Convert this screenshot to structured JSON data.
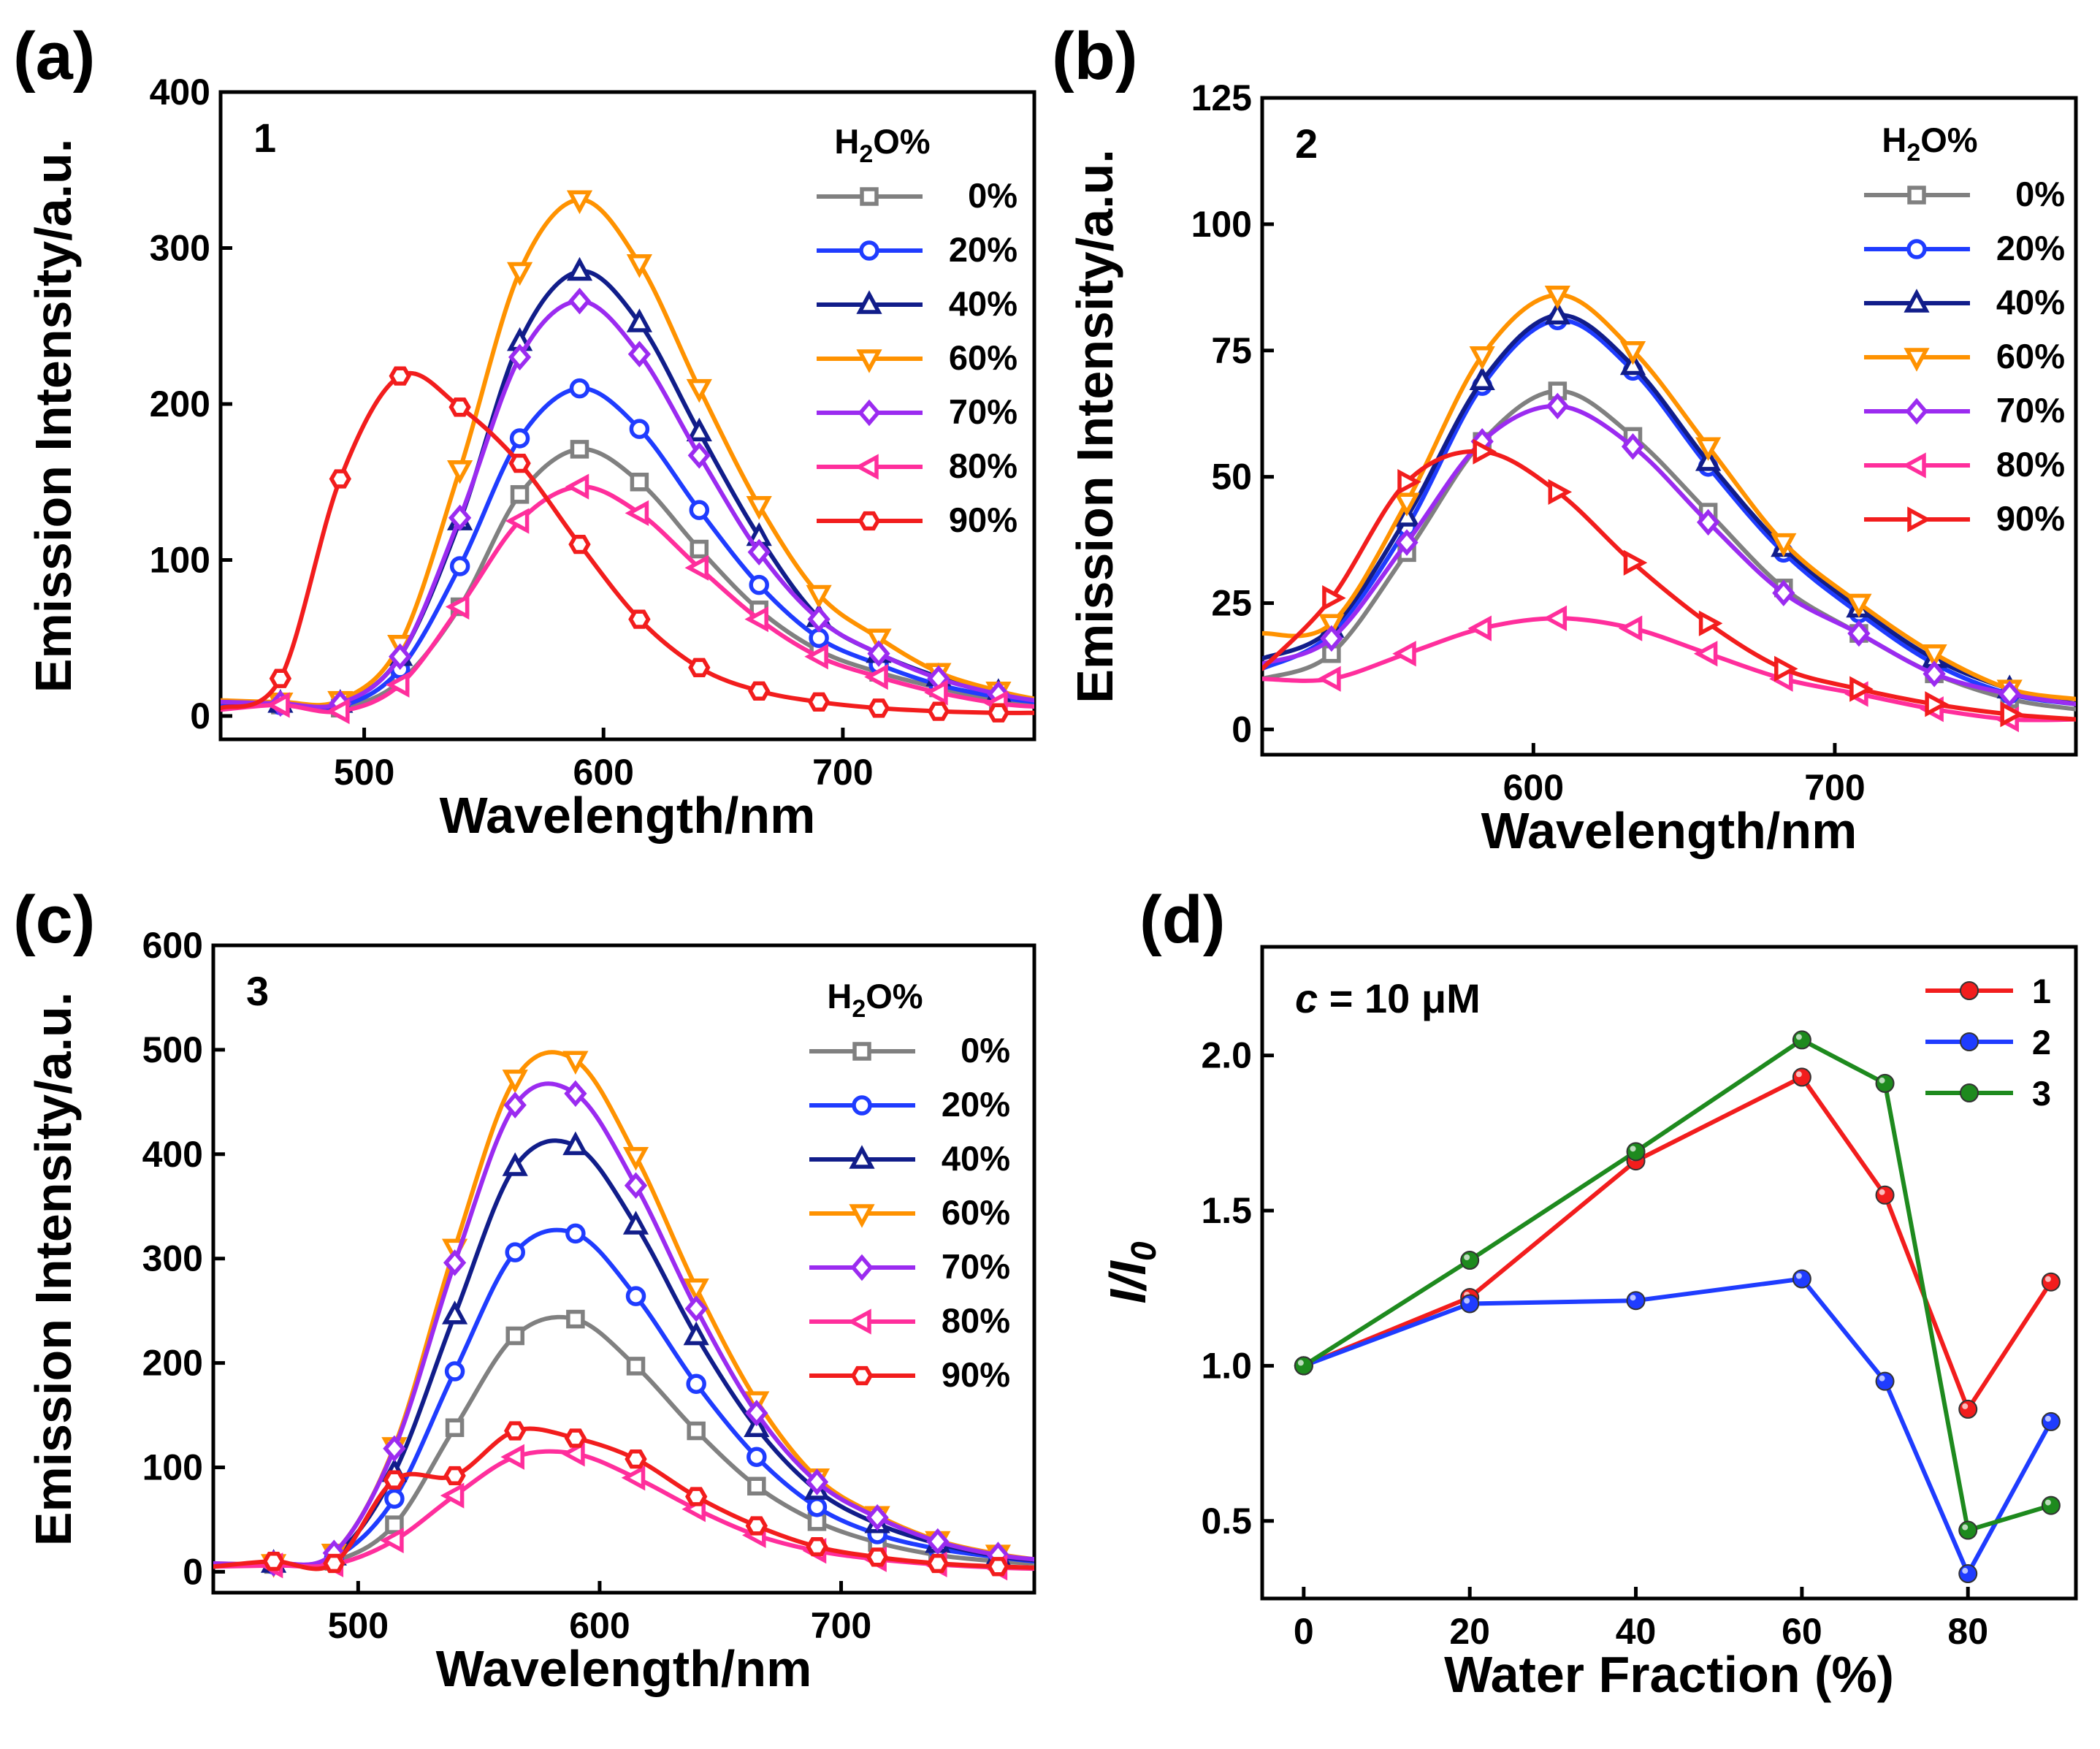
{
  "figure": {
    "panels": [
      "(a)",
      "(b)",
      "(c)",
      "(d)"
    ]
  },
  "series_colors": {
    "0%": "#808080",
    "20%": "#1f3cff",
    "40%": "#111d8a",
    "60%": "#ff9200",
    "70%": "#9b2bf0",
    "80%": "#ff2e9c",
    "90%": "#f21d1d"
  },
  "chart_data": [
    {
      "panel": "(a)",
      "type": "line",
      "compound_label": "1",
      "legend_title": "H2O%",
      "xlabel": "Wavelength/nm",
      "ylabel": "Emission Intensity/a.u.",
      "xlim": [
        440,
        780
      ],
      "ylim": [
        -15,
        400
      ],
      "xticks": [
        500,
        600,
        700
      ],
      "yticks": [
        0,
        100,
        200,
        300,
        400
      ],
      "series": [
        {
          "name": "0%",
          "marker": "square",
          "x": [
            440,
            465,
            490,
            515,
            540,
            565,
            590,
            615,
            640,
            665,
            690,
            715,
            740,
            765,
            780
          ],
          "values": [
            8,
            7,
            5,
            22,
            70,
            142,
            171,
            150,
            107,
            68,
            42,
            28,
            18,
            10,
            8
          ]
        },
        {
          "name": "20%",
          "marker": "circle",
          "x": [
            440,
            465,
            490,
            515,
            540,
            565,
            590,
            615,
            640,
            665,
            690,
            715,
            740,
            765,
            780
          ],
          "values": [
            8,
            7,
            6,
            30,
            96,
            178,
            210,
            184,
            132,
            84,
            50,
            33,
            20,
            12,
            9
          ]
        },
        {
          "name": "40%",
          "marker": "triangle-up",
          "x": [
            440,
            465,
            490,
            515,
            540,
            565,
            590,
            615,
            640,
            665,
            690,
            715,
            740,
            765,
            780
          ],
          "values": [
            9,
            8,
            8,
            38,
            125,
            240,
            285,
            252,
            182,
            115,
            63,
            40,
            25,
            15,
            10
          ]
        },
        {
          "name": "60%",
          "marker": "triangle-down",
          "x": [
            440,
            465,
            490,
            515,
            540,
            565,
            590,
            615,
            640,
            665,
            690,
            715,
            740,
            765,
            780
          ],
          "values": [
            10,
            9,
            10,
            46,
            158,
            285,
            331,
            290,
            210,
            135,
            78,
            50,
            28,
            16,
            11
          ]
        },
        {
          "name": "70%",
          "marker": "diamond",
          "x": [
            440,
            465,
            490,
            515,
            540,
            565,
            590,
            615,
            640,
            665,
            690,
            715,
            740,
            765,
            780
          ],
          "values": [
            9,
            8,
            8,
            38,
            127,
            230,
            266,
            232,
            167,
            105,
            62,
            40,
            24,
            14,
            10
          ]
        },
        {
          "name": "80%",
          "marker": "triangle-left",
          "x": [
            440,
            465,
            490,
            515,
            540,
            565,
            590,
            615,
            640,
            665,
            690,
            715,
            740,
            765,
            780
          ],
          "values": [
            4,
            7,
            3,
            20,
            70,
            125,
            147,
            130,
            95,
            62,
            38,
            25,
            15,
            8,
            6
          ]
        },
        {
          "name": "90%",
          "marker": "hexagon",
          "x": [
            440,
            465,
            490,
            515,
            540,
            565,
            590,
            615,
            640,
            665,
            690,
            715,
            740,
            765,
            780
          ],
          "values": [
            5,
            24,
            152,
            218,
            198,
            162,
            110,
            62,
            31,
            16,
            9,
            5,
            3,
            2,
            2
          ]
        }
      ]
    },
    {
      "panel": "(b)",
      "type": "line",
      "compound_label": "2",
      "legend_title": "H2O%",
      "xlabel": "Wavelength/nm",
      "ylabel": "Emission Intensity/a.u.",
      "xlim": [
        510,
        780
      ],
      "ylim": [
        -5,
        125
      ],
      "xticks": [
        600,
        700
      ],
      "yticks": [
        0,
        25,
        50,
        75,
        100,
        125
      ],
      "series": [
        {
          "name": "0%",
          "marker": "square",
          "x": [
            510,
            533,
            558,
            583,
            608,
            633,
            658,
            683,
            708,
            733,
            758,
            780
          ],
          "values": [
            10,
            15,
            35,
            57,
            67,
            58,
            43,
            28,
            19,
            11,
            6,
            4
          ]
        },
        {
          "name": "20%",
          "marker": "circle",
          "x": [
            510,
            533,
            558,
            583,
            608,
            633,
            658,
            683,
            708,
            733,
            758,
            780
          ],
          "values": [
            12,
            19,
            40,
            68,
            81,
            71,
            52,
            35,
            23,
            13,
            7,
            5
          ]
        },
        {
          "name": "40%",
          "marker": "triangle-up",
          "x": [
            510,
            533,
            558,
            583,
            608,
            633,
            658,
            683,
            708,
            733,
            758,
            780
          ],
          "values": [
            14,
            20,
            42,
            69,
            82,
            72,
            53,
            36,
            24,
            14,
            8,
            5
          ]
        },
        {
          "name": "60%",
          "marker": "triangle-down",
          "x": [
            510,
            533,
            558,
            583,
            608,
            633,
            658,
            683,
            708,
            733,
            758,
            780
          ],
          "values": [
            19,
            21,
            45,
            74,
            86,
            75,
            56,
            37,
            25,
            15,
            8,
            6
          ]
        },
        {
          "name": "70%",
          "marker": "diamond",
          "x": [
            510,
            533,
            558,
            583,
            608,
            633,
            658,
            683,
            708,
            733,
            758,
            780
          ],
          "values": [
            13,
            18,
            37,
            57,
            64,
            56,
            41,
            27,
            19,
            11,
            7,
            5
          ]
        },
        {
          "name": "80%",
          "marker": "triangle-left",
          "x": [
            510,
            533,
            558,
            583,
            608,
            633,
            658,
            683,
            708,
            733,
            758,
            780
          ],
          "values": [
            10,
            10,
            15,
            20,
            22,
            20,
            15,
            10,
            7,
            4,
            2,
            2
          ]
        },
        {
          "name": "90%",
          "marker": "triangle-right",
          "x": [
            510,
            533,
            558,
            583,
            608,
            633,
            658,
            683,
            708,
            733,
            758,
            780
          ],
          "values": [
            12,
            26,
            49,
            55,
            47,
            33,
            21,
            12,
            8,
            5,
            3,
            2
          ]
        }
      ]
    },
    {
      "panel": "(c)",
      "type": "line",
      "compound_label": "3",
      "legend_title": "H2O%",
      "xlabel": "Wavelength/nm",
      "ylabel": "Emission Intensity/a.u.",
      "xlim": [
        440,
        780
      ],
      "ylim": [
        -20,
        600
      ],
      "xticks": [
        500,
        600,
        700
      ],
      "yticks": [
        0,
        100,
        200,
        300,
        400,
        500,
        600
      ],
      "series": [
        {
          "name": "0%",
          "marker": "square",
          "x": [
            440,
            465,
            490,
            515,
            540,
            565,
            590,
            615,
            640,
            665,
            690,
            715,
            740,
            765,
            780
          ],
          "values": [
            5,
            7,
            10,
            45,
            138,
            226,
            242,
            197,
            135,
            82,
            48,
            28,
            16,
            10,
            8
          ]
        },
        {
          "name": "20%",
          "marker": "circle",
          "x": [
            440,
            465,
            490,
            515,
            540,
            565,
            590,
            615,
            640,
            665,
            690,
            715,
            740,
            765,
            780
          ],
          "values": [
            6,
            7,
            13,
            70,
            192,
            306,
            324,
            264,
            180,
            110,
            62,
            36,
            22,
            14,
            10
          ]
        },
        {
          "name": "40%",
          "marker": "triangle-up",
          "x": [
            440,
            465,
            490,
            515,
            540,
            565,
            590,
            615,
            640,
            665,
            690,
            715,
            740,
            765,
            780
          ],
          "values": [
            7,
            8,
            15,
            95,
            246,
            388,
            408,
            332,
            226,
            138,
            78,
            46,
            27,
            15,
            11
          ]
        },
        {
          "name": "60%",
          "marker": "triangle-down",
          "x": [
            440,
            465,
            490,
            515,
            540,
            565,
            590,
            615,
            640,
            665,
            690,
            715,
            740,
            765,
            780
          ],
          "values": [
            8,
            8,
            18,
            120,
            310,
            472,
            490,
            398,
            272,
            164,
            90,
            54,
            30,
            17,
            12
          ]
        },
        {
          "name": "70%",
          "marker": "diamond",
          "x": [
            440,
            465,
            490,
            515,
            540,
            565,
            590,
            615,
            640,
            665,
            690,
            715,
            740,
            765,
            780
          ],
          "values": [
            8,
            8,
            18,
            118,
            296,
            447,
            458,
            370,
            252,
            152,
            86,
            52,
            29,
            16,
            12
          ]
        },
        {
          "name": "80%",
          "marker": "triangle-left",
          "x": [
            440,
            465,
            490,
            515,
            540,
            565,
            590,
            615,
            640,
            665,
            690,
            715,
            740,
            765,
            780
          ],
          "values": [
            5,
            6,
            7,
            30,
            73,
            110,
            113,
            90,
            60,
            35,
            20,
            12,
            7,
            4,
            3
          ]
        },
        {
          "name": "90%",
          "marker": "hexagon",
          "x": [
            440,
            465,
            490,
            515,
            540,
            565,
            590,
            615,
            640,
            665,
            690,
            715,
            740,
            765,
            780
          ],
          "values": [
            5,
            10,
            8,
            88,
            92,
            135,
            128,
            108,
            72,
            44,
            24,
            14,
            8,
            5,
            4
          ]
        }
      ]
    },
    {
      "panel": "(d)",
      "type": "line",
      "annotation": "c = 10 μM",
      "xlabel": "Water Fraction (%)",
      "ylabel": "I/I0",
      "xlim": [
        -5,
        93
      ],
      "ylim": [
        0.25,
        2.35
      ],
      "xticks": [
        0,
        20,
        40,
        60,
        80
      ],
      "yticks": [
        0.5,
        1.0,
        1.5,
        2.0
      ],
      "x": [
        0,
        20,
        40,
        60,
        70,
        80,
        90
      ],
      "series": [
        {
          "name": "1",
          "color": "#f21d1d",
          "values": [
            1.0,
            1.22,
            1.66,
            1.93,
            1.55,
            0.86,
            1.27
          ]
        },
        {
          "name": "2",
          "color": "#1f3cff",
          "values": [
            1.0,
            1.2,
            1.21,
            1.28,
            0.95,
            0.33,
            0.82
          ]
        },
        {
          "name": "3",
          "color": "#1e8a1e",
          "values": [
            1.0,
            1.34,
            1.69,
            2.05,
            1.91,
            0.47,
            0.55
          ]
        }
      ]
    }
  ]
}
